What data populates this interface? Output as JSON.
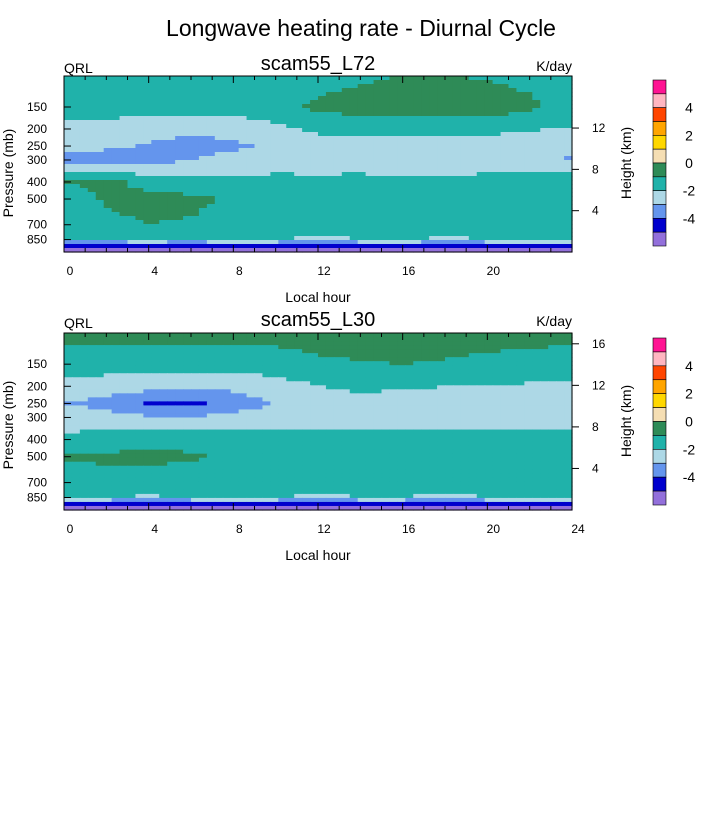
{
  "figure": {
    "title": "Longwave heating rate - Diurnal Cycle"
  },
  "colors": {
    "level_colors": [
      "#9370db",
      "#0000cd",
      "#6495ed",
      "#add8e6",
      "#20b2aa",
      "#2e8b57",
      "#f5deb3",
      "#ffd700",
      "#ffa500",
      "#ff4500",
      "#ffb6c1",
      "#ff1493"
    ],
    "background": "#ffffff"
  },
  "chart_data": [
    {
      "type": "contour",
      "panel_title": "scam55_L72",
      "left_label": "QRL",
      "right_label": "K/day",
      "xlabel": "Local hour",
      "ylabel": "Pressure (mb)",
      "y2label": "Height (km)",
      "xlim": [
        0,
        24
      ],
      "x_ticks": [
        0,
        4,
        8,
        12,
        16,
        20
      ],
      "x_tick_labels": [
        "0",
        "4",
        "8",
        "12",
        "16",
        "20"
      ],
      "y_ticks": [
        150,
        200,
        250,
        300,
        400,
        500,
        700,
        850
      ],
      "y_tick_labels": [
        "150",
        "200",
        "250",
        "300",
        "400",
        "500",
        "700",
        "850"
      ],
      "y2_ticks": [
        4,
        8,
        12
      ],
      "y2_tick_labels": [
        "4",
        "8",
        "12"
      ],
      "colorbar": {
        "levels": [
          -5,
          -4,
          -3,
          -2,
          -1,
          0,
          1,
          2,
          3,
          4,
          5
        ],
        "labels": [
          "4",
          "2",
          "0",
          "-2",
          "-4"
        ]
      },
      "hours": [
        0,
        2,
        4,
        6,
        8,
        10,
        12,
        14,
        16,
        18,
        20,
        22,
        24
      ],
      "pressure_levels": [
        100,
        150,
        200,
        250,
        300,
        400,
        500,
        700,
        850,
        950
      ],
      "field": [
        [
          -1.5,
          -1.5,
          -1.6,
          -1.6,
          -1.5,
          -1.5,
          -1.4,
          -1.2,
          -1.0,
          -1.0,
          -1.1,
          -1.3,
          -1.5
        ],
        [
          -1.5,
          -1.5,
          -1.6,
          -1.6,
          -1.5,
          -1.3,
          -0.8,
          -0.5,
          -0.3,
          -0.2,
          -0.4,
          -0.8,
          -1.4
        ],
        [
          -2.4,
          -2.4,
          -2.6,
          -2.8,
          -2.7,
          -2.3,
          -1.8,
          -1.7,
          -1.8,
          -1.8,
          -1.8,
          -1.9,
          -2.1
        ],
        [
          -2.6,
          -2.8,
          -3.1,
          -3.3,
          -3.2,
          -2.8,
          -2.4,
          -2.3,
          -2.4,
          -2.4,
          -2.4,
          -2.5,
          -2.8
        ],
        [
          -3.3,
          -3.6,
          -3.4,
          -3.0,
          -2.7,
          -2.5,
          -2.4,
          -2.3,
          -2.4,
          -2.4,
          -2.3,
          -2.5,
          -3.1
        ],
        [
          -1.0,
          -0.6,
          -1.4,
          -1.6,
          -1.7,
          -1.7,
          -1.8,
          -1.8,
          -1.9,
          -1.9,
          -1.8,
          -1.6,
          -1.3
        ],
        [
          -1.6,
          -0.9,
          -0.7,
          -0.8,
          -1.1,
          -1.4,
          -1.6,
          -1.6,
          -1.5,
          -1.5,
          -1.5,
          -1.4,
          -1.5
        ],
        [
          -1.4,
          -1.2,
          -1.0,
          -1.1,
          -1.3,
          -1.6,
          -1.7,
          -1.8,
          -1.7,
          -1.7,
          -1.7,
          -1.6,
          -1.5
        ],
        [
          -2.0,
          -2.1,
          -1.9,
          -2.1,
          -1.8,
          -2.0,
          -2.1,
          -2.0,
          -1.9,
          -2.1,
          -2.0,
          -1.9,
          -2.0
        ],
        [
          -5.5,
          -5.5,
          -5.5,
          -5.5,
          -5.5,
          -5.5,
          -5.5,
          -5.5,
          -5.5,
          -5.5,
          -5.5,
          -5.5,
          -5.5
        ]
      ]
    },
    {
      "type": "contour",
      "panel_title": "scam55_L30",
      "left_label": "QRL",
      "right_label": "K/day",
      "xlabel": "Local hour",
      "ylabel": "Pressure (mb)",
      "y2label": "Height (km)",
      "xlim": [
        0,
        24
      ],
      "x_ticks": [
        0,
        4,
        8,
        12,
        16,
        20,
        24
      ],
      "x_tick_labels": [
        "0",
        "4",
        "8",
        "12",
        "16",
        "20",
        "24"
      ],
      "y_ticks": [
        150,
        200,
        250,
        300,
        400,
        500,
        700,
        850
      ],
      "y_tick_labels": [
        "150",
        "200",
        "250",
        "300",
        "400",
        "500",
        "700",
        "850"
      ],
      "y2_ticks": [
        4,
        8,
        12,
        16
      ],
      "y2_tick_labels": [
        "4",
        "8",
        "12",
        "16"
      ],
      "colorbar": {
        "levels": [
          -5,
          -4,
          -3,
          -2,
          -1,
          0,
          1,
          2,
          3,
          4,
          5
        ],
        "labels": [
          "4",
          "2",
          "0",
          "-2",
          "-4"
        ]
      },
      "hours": [
        0,
        2,
        4,
        6,
        8,
        10,
        12,
        14,
        16,
        18,
        20,
        22,
        24
      ],
      "pressure_levels": [
        100,
        150,
        200,
        250,
        300,
        400,
        500,
        700,
        850,
        950
      ],
      "field": [
        [
          -0.6,
          -0.6,
          -0.6,
          -0.6,
          -0.6,
          -0.6,
          -0.5,
          -0.2,
          -0.3,
          -0.4,
          -0.5,
          -0.6,
          -0.6
        ],
        [
          -1.6,
          -1.6,
          -1.6,
          -1.6,
          -1.5,
          -1.5,
          -1.2,
          -1.1,
          -1.0,
          -1.1,
          -1.3,
          -1.4,
          -1.6
        ],
        [
          -2.2,
          -2.4,
          -2.6,
          -2.8,
          -2.7,
          -2.4,
          -2.0,
          -1.8,
          -1.9,
          -2.0,
          -2.0,
          -2.1,
          -2.2
        ],
        [
          -3.0,
          -3.4,
          -4.1,
          -4.2,
          -3.6,
          -2.9,
          -2.4,
          -2.3,
          -2.4,
          -2.4,
          -2.4,
          -2.6,
          -3.0
        ],
        [
          -2.4,
          -2.6,
          -2.9,
          -2.9,
          -2.7,
          -2.5,
          -2.3,
          -2.3,
          -2.4,
          -2.4,
          -2.4,
          -2.4,
          -2.4
        ],
        [
          -1.8,
          -1.6,
          -1.2,
          -1.3,
          -1.4,
          -1.5,
          -1.7,
          -1.7,
          -1.7,
          -1.7,
          -1.7,
          -1.6,
          -1.7
        ],
        [
          -0.9,
          -0.8,
          -0.8,
          -0.9,
          -1.1,
          -1.5,
          -1.6,
          -1.7,
          -1.6,
          -1.6,
          -1.6,
          -1.6,
          -1.4
        ],
        [
          -1.6,
          -1.4,
          -1.4,
          -1.5,
          -1.5,
          -1.5,
          -1.7,
          -1.8,
          -1.8,
          -1.8,
          -1.8,
          -1.8,
          -1.7
        ],
        [
          -2.0,
          -2.0,
          -2.1,
          -2.0,
          -2.0,
          -2.0,
          -2.1,
          -2.0,
          -2.0,
          -2.1,
          -2.0,
          -2.0,
          -2.0
        ],
        [
          -5.5,
          -5.5,
          -5.5,
          -5.5,
          -5.5,
          -5.5,
          -5.5,
          -5.5,
          -5.5,
          -5.5,
          -5.5,
          -5.5,
          -5.5
        ]
      ]
    }
  ]
}
